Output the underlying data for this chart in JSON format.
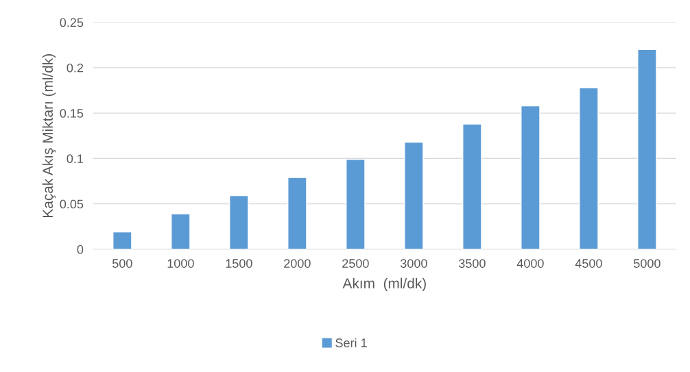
{
  "chart_data": {
    "type": "bar",
    "xlabel": "Akım  (ml/dk)",
    "ylabel": "Kaçak Akış Miktarı (ml/dk)",
    "categories": [
      "500",
      "1000",
      "1500",
      "2000",
      "2500",
      "3000",
      "3500",
      "4000",
      "4500",
      "5000"
    ],
    "series": [
      {
        "name": "Seri 1",
        "color": "#5b9bd5",
        "values": [
          0.019,
          0.039,
          0.059,
          0.079,
          0.099,
          0.118,
          0.138,
          0.158,
          0.178,
          0.22
        ]
      }
    ],
    "ylim": [
      0,
      0.25
    ],
    "yticks": [
      {
        "value": 0,
        "label": "0"
      },
      0.05,
      {
        "value": 0.1,
        "label": "0.1"
      },
      0.15,
      {
        "value": 0.2,
        "label": "0.2"
      },
      0.25
    ],
    "grid": "y",
    "legend": "bottom"
  }
}
